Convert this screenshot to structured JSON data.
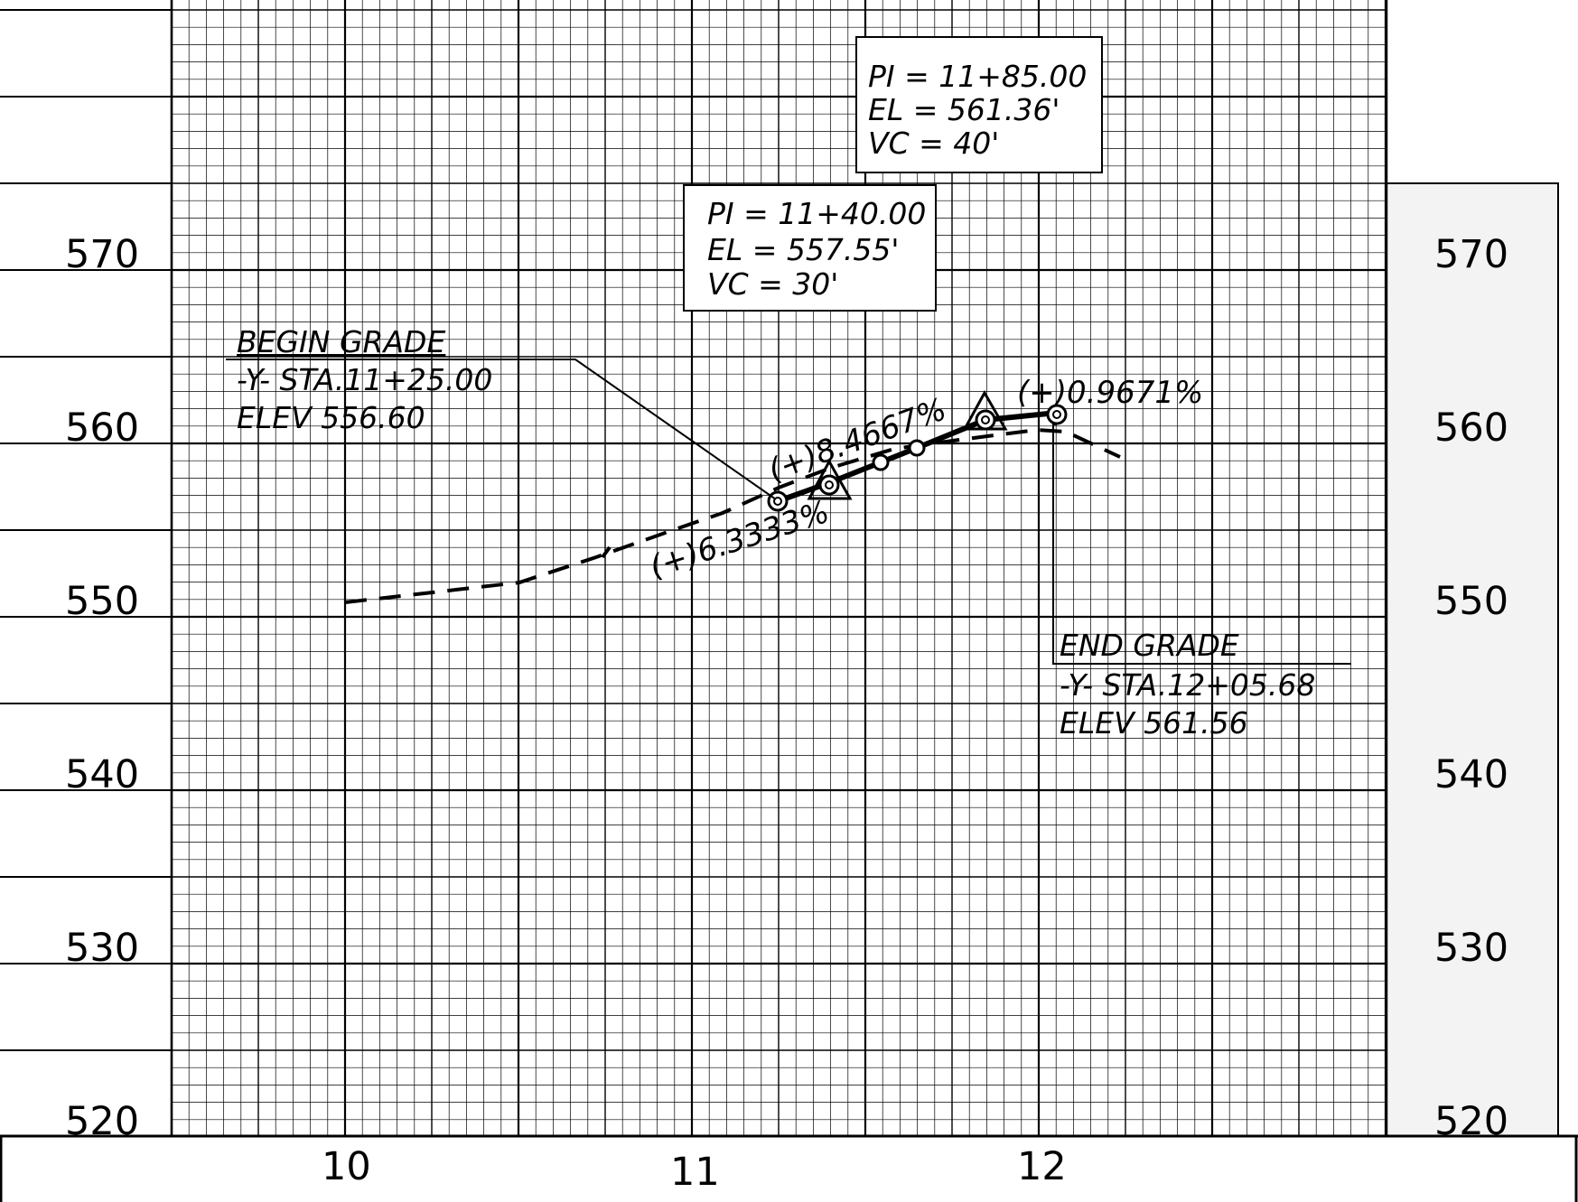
{
  "elevation_labels": [
    "570",
    "560",
    "550",
    "540",
    "530",
    "520"
  ],
  "station_labels": [
    "10",
    "11",
    "12"
  ],
  "pi_boxes": [
    {
      "pi": "PI =  11+85.00",
      "el": "EL  =  561.36'",
      "vc": "VC  =  40'"
    },
    {
      "pi": "PI =  11+40.00",
      "el": "EL  =  557.55'",
      "vc": "VC  =  30'"
    }
  ],
  "begin_grade": {
    "title": "BEGIN  GRADE",
    "station": "-Y-  STA.11+25.00",
    "elev": "ELEV  556.60"
  },
  "end_grade": {
    "title": "END  GRADE",
    "station": "-Y-  STA.12+05.68",
    "elev": "ELEV  561.56"
  },
  "grades": {
    "g1": "(+)6.3333%",
    "g2": "(+)8.4667%",
    "g3": "(+)0.9671%"
  },
  "colors": {
    "ink": "#000000",
    "grid": "#000000",
    "paper": "#ffffff",
    "margin_panel": "#f3f3f3"
  }
}
